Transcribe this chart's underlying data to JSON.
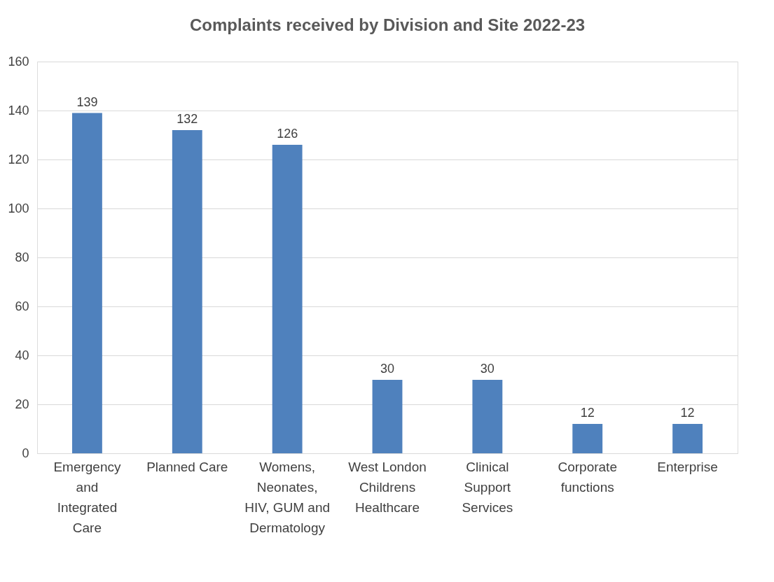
{
  "chart_data": {
    "type": "bar",
    "title": "Complaints received by Division and Site 2022-23",
    "categories": [
      "Emergency and Integrated Care",
      "Planned Care",
      "Womens, Neonates, HIV, GUM and Dermatology",
      "West London Childrens Healthcare",
      "Clinical Support Services",
      "Corporate functions",
      "Enterprise"
    ],
    "values": [
      139,
      132,
      126,
      30,
      30,
      12,
      12
    ],
    "color": "#4f81bd",
    "ylim": [
      0,
      160
    ],
    "yticks": [
      0,
      20,
      40,
      60,
      80,
      100,
      120,
      140,
      160
    ],
    "grid": "y",
    "data_labels": true
  }
}
